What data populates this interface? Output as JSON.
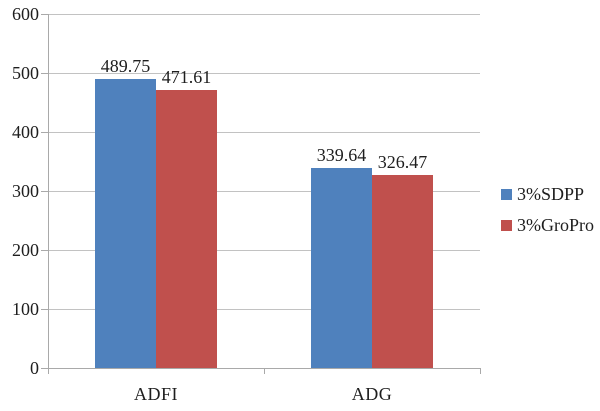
{
  "chart_data": {
    "type": "bar",
    "title": "",
    "xlabel": "",
    "ylabel": "",
    "categories": [
      "ADFI",
      "ADG"
    ],
    "series": [
      {
        "name": "3%SDPP",
        "color": "#4F81BD",
        "values": [
          489.75,
          339.64
        ]
      },
      {
        "name": "3%GroPro",
        "color": "#C0504D",
        "values": [
          471.61,
          326.47
        ]
      }
    ],
    "data_labels": [
      [
        "489.75",
        "339.64"
      ],
      [
        "471.61",
        "326.47"
      ]
    ],
    "ylim": [
      0,
      600
    ],
    "yticks": [
      "0",
      "100",
      "200",
      "300",
      "400",
      "500",
      "600"
    ],
    "grid": true,
    "legend_position": "right",
    "colors": {
      "background": "#FFFFFF",
      "gridline": "#C2C2C2",
      "axis": "#A9A9A9",
      "text": "#1E1E1E"
    }
  }
}
